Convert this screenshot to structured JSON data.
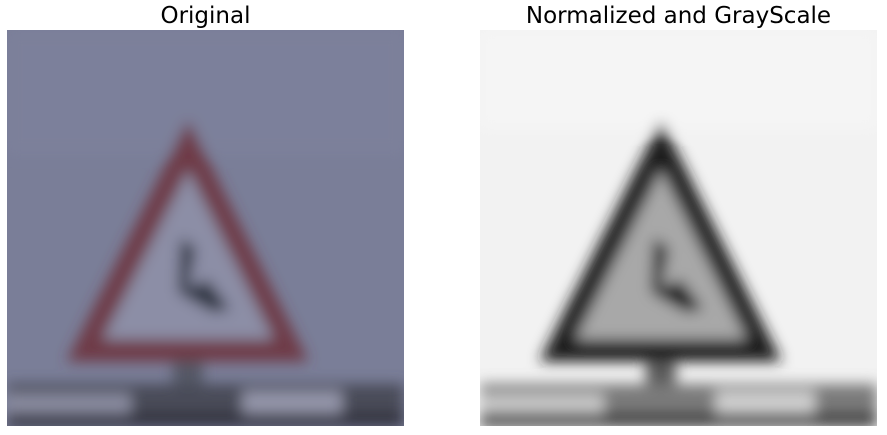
{
  "figure": {
    "panels": [
      {
        "title": "Original"
      },
      {
        "title": "Normalized and GrayScale"
      }
    ]
  },
  "colors": {
    "original_sky": "#7a7e98",
    "original_sign_border": "#6e3a46",
    "original_sign_face": "#8c8ea6",
    "original_symbol": "#2e3442",
    "original_ground": "#4a4c58",
    "gray_sky": "#f2f2f2",
    "gray_sign_border": "#1c1c1c",
    "gray_sign_face": "#a8a8a8",
    "gray_symbol": "#141414",
    "gray_ground": "#7a7a7a"
  },
  "icons": {
    "sign": "warning-triangle-road-sign"
  }
}
